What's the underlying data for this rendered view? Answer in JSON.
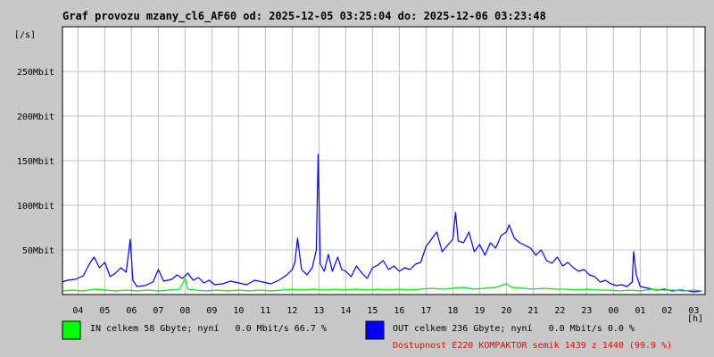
{
  "chart_data": {
    "type": "line",
    "title": "Graf provozu mzany_cl6_AF60 od: 2025-12-05 03:25:04 do: 2025-12-06 03:23:48",
    "ylabel": "[/s]",
    "xlabel": "[h]",
    "ylim": [
      0,
      300
    ],
    "y_unit": "Mbit",
    "yticks": [
      {
        "value": 50,
        "label": "50Mbit"
      },
      {
        "value": 100,
        "label": "100Mbit"
      },
      {
        "value": 150,
        "label": "150Mbit"
      },
      {
        "value": 200,
        "label": "200Mbit"
      },
      {
        "value": 250,
        "label": "250Mbit"
      }
    ],
    "x_hours": [
      "04",
      "05",
      "06",
      "07",
      "08",
      "09",
      "10",
      "11",
      "12",
      "13",
      "14",
      "15",
      "16",
      "17",
      "18",
      "19",
      "20",
      "21",
      "22",
      "23",
      "00",
      "01",
      "02",
      "03"
    ],
    "grid": true,
    "series": [
      {
        "name": "OUT",
        "color": "#0000ff",
        "points": [
          [
            3.42,
            14
          ],
          [
            3.6,
            16
          ],
          [
            3.9,
            17
          ],
          [
            4.2,
            21
          ],
          [
            4.4,
            33
          ],
          [
            4.6,
            42
          ],
          [
            4.8,
            30
          ],
          [
            5.0,
            36
          ],
          [
            5.2,
            20
          ],
          [
            5.4,
            24
          ],
          [
            5.6,
            30
          ],
          [
            5.8,
            25
          ],
          [
            5.95,
            62
          ],
          [
            6.05,
            16
          ],
          [
            6.2,
            9
          ],
          [
            6.5,
            10
          ],
          [
            6.8,
            14
          ],
          [
            7.0,
            28
          ],
          [
            7.2,
            15
          ],
          [
            7.5,
            17
          ],
          [
            7.7,
            22
          ],
          [
            7.9,
            18
          ],
          [
            8.1,
            24
          ],
          [
            8.3,
            16
          ],
          [
            8.5,
            19
          ],
          [
            8.7,
            13
          ],
          [
            8.9,
            16
          ],
          [
            9.1,
            11
          ],
          [
            9.4,
            12
          ],
          [
            9.7,
            15
          ],
          [
            10.0,
            13
          ],
          [
            10.3,
            11
          ],
          [
            10.6,
            16
          ],
          [
            10.9,
            14
          ],
          [
            11.2,
            12
          ],
          [
            11.5,
            16
          ],
          [
            11.8,
            22
          ],
          [
            12.0,
            28
          ],
          [
            12.1,
            36
          ],
          [
            12.2,
            63
          ],
          [
            12.35,
            28
          ],
          [
            12.55,
            22
          ],
          [
            12.75,
            30
          ],
          [
            12.9,
            50
          ],
          [
            12.97,
            157
          ],
          [
            13.05,
            34
          ],
          [
            13.2,
            26
          ],
          [
            13.35,
            45
          ],
          [
            13.5,
            26
          ],
          [
            13.7,
            42
          ],
          [
            13.85,
            28
          ],
          [
            14.0,
            26
          ],
          [
            14.2,
            20
          ],
          [
            14.4,
            32
          ],
          [
            14.6,
            24
          ],
          [
            14.8,
            18
          ],
          [
            15.0,
            30
          ],
          [
            15.2,
            33
          ],
          [
            15.4,
            38
          ],
          [
            15.6,
            28
          ],
          [
            15.8,
            32
          ],
          [
            16.0,
            26
          ],
          [
            16.2,
            30
          ],
          [
            16.4,
            28
          ],
          [
            16.6,
            34
          ],
          [
            16.8,
            36
          ],
          [
            17.0,
            54
          ],
          [
            17.2,
            62
          ],
          [
            17.4,
            70
          ],
          [
            17.6,
            48
          ],
          [
            17.8,
            55
          ],
          [
            18.0,
            62
          ],
          [
            18.1,
            92
          ],
          [
            18.2,
            60
          ],
          [
            18.4,
            58
          ],
          [
            18.6,
            70
          ],
          [
            18.8,
            48
          ],
          [
            19.0,
            56
          ],
          [
            19.2,
            44
          ],
          [
            19.4,
            58
          ],
          [
            19.6,
            52
          ],
          [
            19.8,
            66
          ],
          [
            20.0,
            70
          ],
          [
            20.1,
            78
          ],
          [
            20.3,
            63
          ],
          [
            20.5,
            58
          ],
          [
            20.7,
            55
          ],
          [
            20.9,
            52
          ],
          [
            21.1,
            44
          ],
          [
            21.3,
            50
          ],
          [
            21.5,
            38
          ],
          [
            21.7,
            35
          ],
          [
            21.9,
            42
          ],
          [
            22.1,
            32
          ],
          [
            22.3,
            36
          ],
          [
            22.5,
            30
          ],
          [
            22.7,
            26
          ],
          [
            22.9,
            28
          ],
          [
            23.1,
            22
          ],
          [
            23.3,
            20
          ],
          [
            23.5,
            14
          ],
          [
            23.7,
            16
          ],
          [
            23.9,
            12
          ],
          [
            24.1,
            10
          ],
          [
            24.3,
            11
          ],
          [
            24.5,
            9
          ],
          [
            24.7,
            14
          ],
          [
            24.75,
            48
          ],
          [
            24.85,
            22
          ],
          [
            25.0,
            9
          ],
          [
            25.3,
            7
          ],
          [
            25.6,
            5
          ],
          [
            25.9,
            6
          ],
          [
            26.2,
            4
          ],
          [
            26.5,
            5
          ],
          [
            26.8,
            4
          ],
          [
            27.0,
            3
          ],
          [
            27.3,
            4
          ]
        ]
      },
      {
        "name": "IN",
        "color": "#00ee00",
        "points": [
          [
            3.42,
            4
          ],
          [
            3.8,
            5
          ],
          [
            4.2,
            4
          ],
          [
            4.6,
            6
          ],
          [
            5.0,
            5
          ],
          [
            5.4,
            4
          ],
          [
            5.8,
            5
          ],
          [
            6.2,
            4
          ],
          [
            6.6,
            5
          ],
          [
            7.0,
            4
          ],
          [
            7.4,
            5
          ],
          [
            7.8,
            6
          ],
          [
            8.0,
            18
          ],
          [
            8.1,
            6
          ],
          [
            8.4,
            5
          ],
          [
            8.8,
            4
          ],
          [
            9.2,
            5
          ],
          [
            9.6,
            4
          ],
          [
            10.0,
            5
          ],
          [
            10.4,
            4
          ],
          [
            10.8,
            5
          ],
          [
            11.2,
            4
          ],
          [
            11.6,
            5
          ],
          [
            12.0,
            6
          ],
          [
            12.4,
            5
          ],
          [
            12.8,
            6
          ],
          [
            13.2,
            5
          ],
          [
            13.6,
            6
          ],
          [
            14.0,
            5
          ],
          [
            14.4,
            6
          ],
          [
            14.8,
            5
          ],
          [
            15.2,
            6
          ],
          [
            15.6,
            5
          ],
          [
            16.0,
            6
          ],
          [
            16.4,
            5
          ],
          [
            16.8,
            6
          ],
          [
            17.2,
            7
          ],
          [
            17.6,
            6
          ],
          [
            18.0,
            7
          ],
          [
            18.4,
            8
          ],
          [
            18.8,
            6
          ],
          [
            19.2,
            7
          ],
          [
            19.6,
            8
          ],
          [
            20.0,
            12
          ],
          [
            20.2,
            8
          ],
          [
            20.6,
            7
          ],
          [
            21.0,
            6
          ],
          [
            21.4,
            7
          ],
          [
            21.8,
            6
          ],
          [
            22.2,
            6
          ],
          [
            22.6,
            5
          ],
          [
            23.0,
            6
          ],
          [
            23.4,
            5
          ],
          [
            23.8,
            5
          ],
          [
            24.2,
            4
          ],
          [
            24.6,
            5
          ],
          [
            25.0,
            4
          ],
          [
            25.4,
            6
          ],
          [
            25.8,
            5
          ],
          [
            26.2,
            5
          ],
          [
            26.6,
            4
          ],
          [
            27.0,
            5
          ],
          [
            27.3,
            4
          ]
        ]
      }
    ]
  },
  "legend": {
    "in": {
      "color": "#00ff00",
      "text": "IN celkem 58 Gbyte; nyní   0.0 Mbit/s 66.7 %"
    },
    "out": {
      "color": "#0000ff",
      "text": "OUT celkem 236 Gbyte; nyní   0.0 Mbit/s 0.0 %"
    },
    "availability": {
      "color": "#ff0000",
      "text": "Dostupnost E220 KOMPAKTOR semik 1439 z 1440 (99.9 %)"
    }
  }
}
